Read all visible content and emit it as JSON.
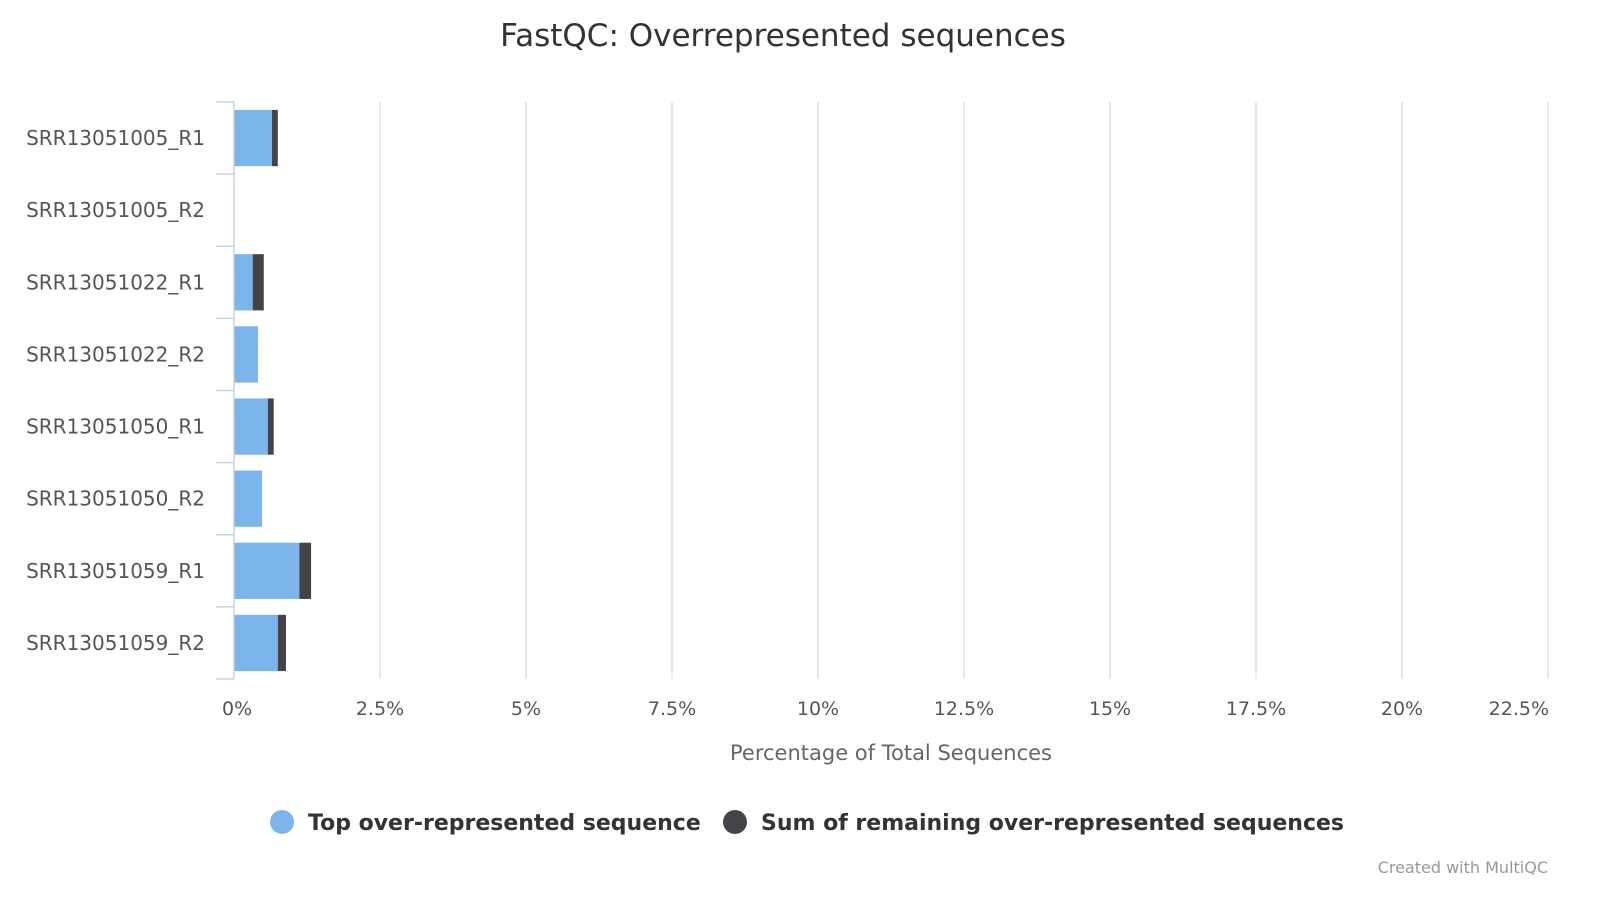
{
  "chart_data": {
    "type": "bar",
    "orientation": "horizontal",
    "stacked": true,
    "title": "FastQC: Overrepresented sequences",
    "xlabel": "Percentage of Total Sequences",
    "ylabel": "",
    "xlim": [
      0,
      22.5
    ],
    "x_ticks": [
      "0%",
      "2.5%",
      "5%",
      "7.5%",
      "10%",
      "12.5%",
      "15%",
      "17.5%",
      "20%",
      "22.5%"
    ],
    "categories": [
      "SRR13051005_R1",
      "SRR13051005_R2",
      "SRR13051022_R1",
      "SRR13051022_R2",
      "SRR13051050_R1",
      "SRR13051050_R2",
      "SRR13051059_R1",
      "SRR13051059_R2"
    ],
    "series": [
      {
        "name": "Top over-represented sequence",
        "color": "#7cb5ec",
        "values": [
          0.65,
          0,
          0.32,
          0.41,
          0.58,
          0.48,
          1.12,
          0.75
        ]
      },
      {
        "name": "Sum of remaining over-represented sequences",
        "color": "#434348",
        "values": [
          0.1,
          0,
          0.19,
          0,
          0.1,
          0,
          0.2,
          0.14
        ]
      }
    ],
    "grid": true,
    "legend": "bottom-center"
  },
  "credit": "Created with MultiQC"
}
